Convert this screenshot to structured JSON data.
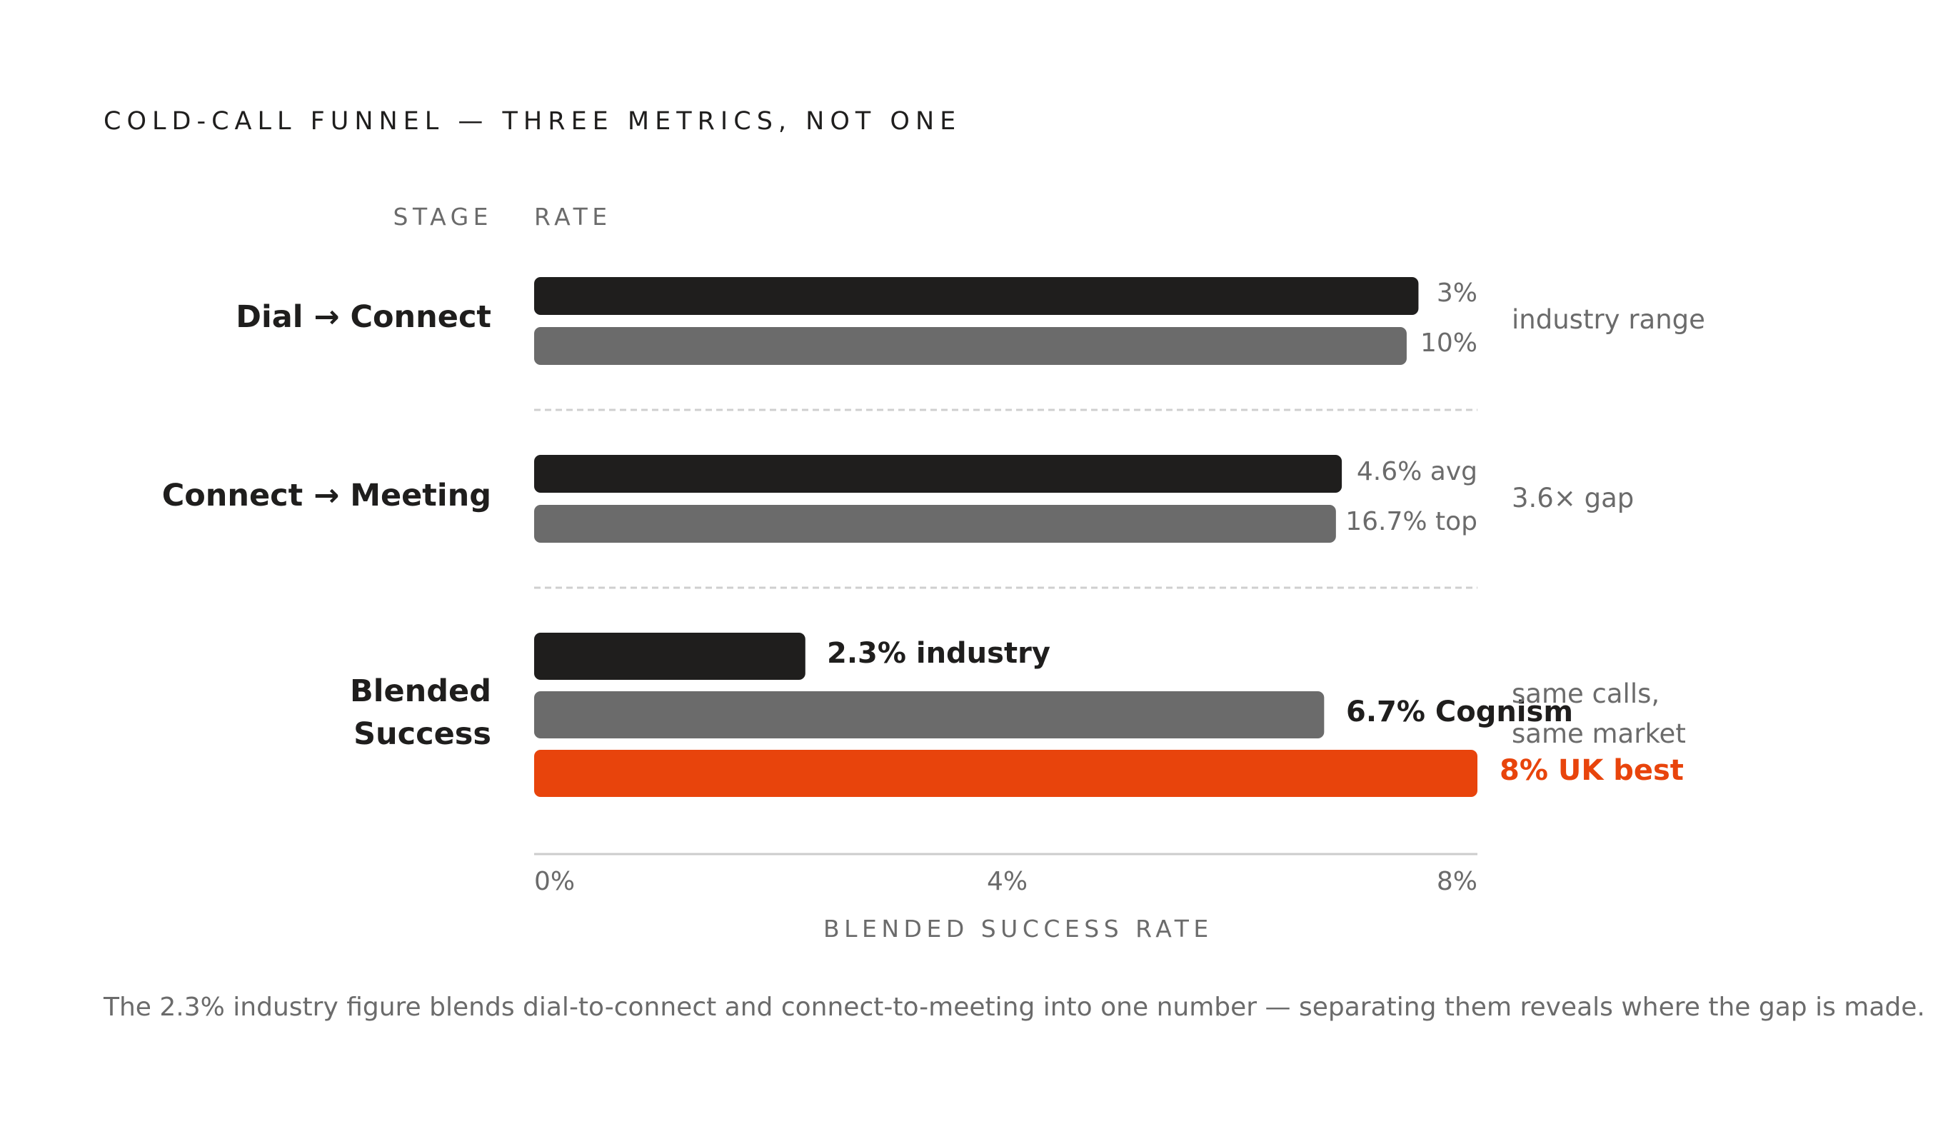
{
  "title": "COLD-CALL FUNNEL — THREE METRICS, NOT ONE",
  "column_headers": {
    "stage": "STAGE",
    "rate": "RATE"
  },
  "groups": [
    {
      "stage": "Dial → Connect",
      "bars": [
        {
          "label": "3%",
          "value": 7.5,
          "color": "#1f1e1d"
        },
        {
          "label": "10%",
          "value": 7.4,
          "color": "#6b6b6b"
        }
      ],
      "note": "industry range"
    },
    {
      "stage": "Connect → Meeting",
      "bars": [
        {
          "label": "4.6% avg",
          "value": 6.85,
          "color": "#1f1e1d"
        },
        {
          "label": "16.7% top",
          "value": 6.8,
          "color": "#6b6b6b"
        }
      ],
      "note": "3.6× gap"
    },
    {
      "stage": "Blended Success",
      "stage_lines": [
        "Blended",
        "Success"
      ],
      "bars": [
        {
          "label": "2.3% industry",
          "value": 2.3,
          "color": "#1f1e1d"
        },
        {
          "label": "6.7% Cognism",
          "value": 6.7,
          "color": "#6b6b6b"
        },
        {
          "label": "8% UK best",
          "value": 8.0,
          "color": "#e8440c"
        }
      ],
      "note_lines": [
        "same calls,",
        "same market"
      ]
    }
  ],
  "axis": {
    "ticks": [
      "0%",
      "4%",
      "8%"
    ],
    "title": "BLENDED SUCCESS RATE"
  },
  "footnote": "The 2.3% industry figure blends dial-to-connect and connect-to-meeting into one number — separating them reveals where the gap is made.",
  "colors": {
    "dark": "#1f1e1d",
    "grey": "#6b6b6b",
    "accent": "#e8440c",
    "divider": "#cfcfcf",
    "axis_line": "#cccccc"
  },
  "chart_data": {
    "type": "bar",
    "orientation": "horizontal",
    "title": "COLD-CALL FUNNEL — THREE METRICS, NOT ONE",
    "xlabel": "BLENDED SUCCESS RATE",
    "xlim": [
      0,
      8
    ],
    "x_ticks": [
      "0%",
      "4%",
      "8%"
    ],
    "categories": [
      "Dial → Connect",
      "Connect → Meeting",
      "Blended Success"
    ],
    "groups": [
      {
        "category": "Dial → Connect",
        "values": [
          7.5,
          7.4
        ],
        "labels": [
          "3%",
          "10%"
        ]
      },
      {
        "category": "Connect → Meeting",
        "values": [
          6.85,
          6.8
        ],
        "labels": [
          "4.6% avg",
          "16.7% top"
        ]
      },
      {
        "category": "Blended Success",
        "values": [
          2.3,
          6.7,
          8.0
        ],
        "labels": [
          "2.3% industry",
          "6.7% Cognism",
          "8% UK best"
        ]
      }
    ],
    "grid": false
  }
}
